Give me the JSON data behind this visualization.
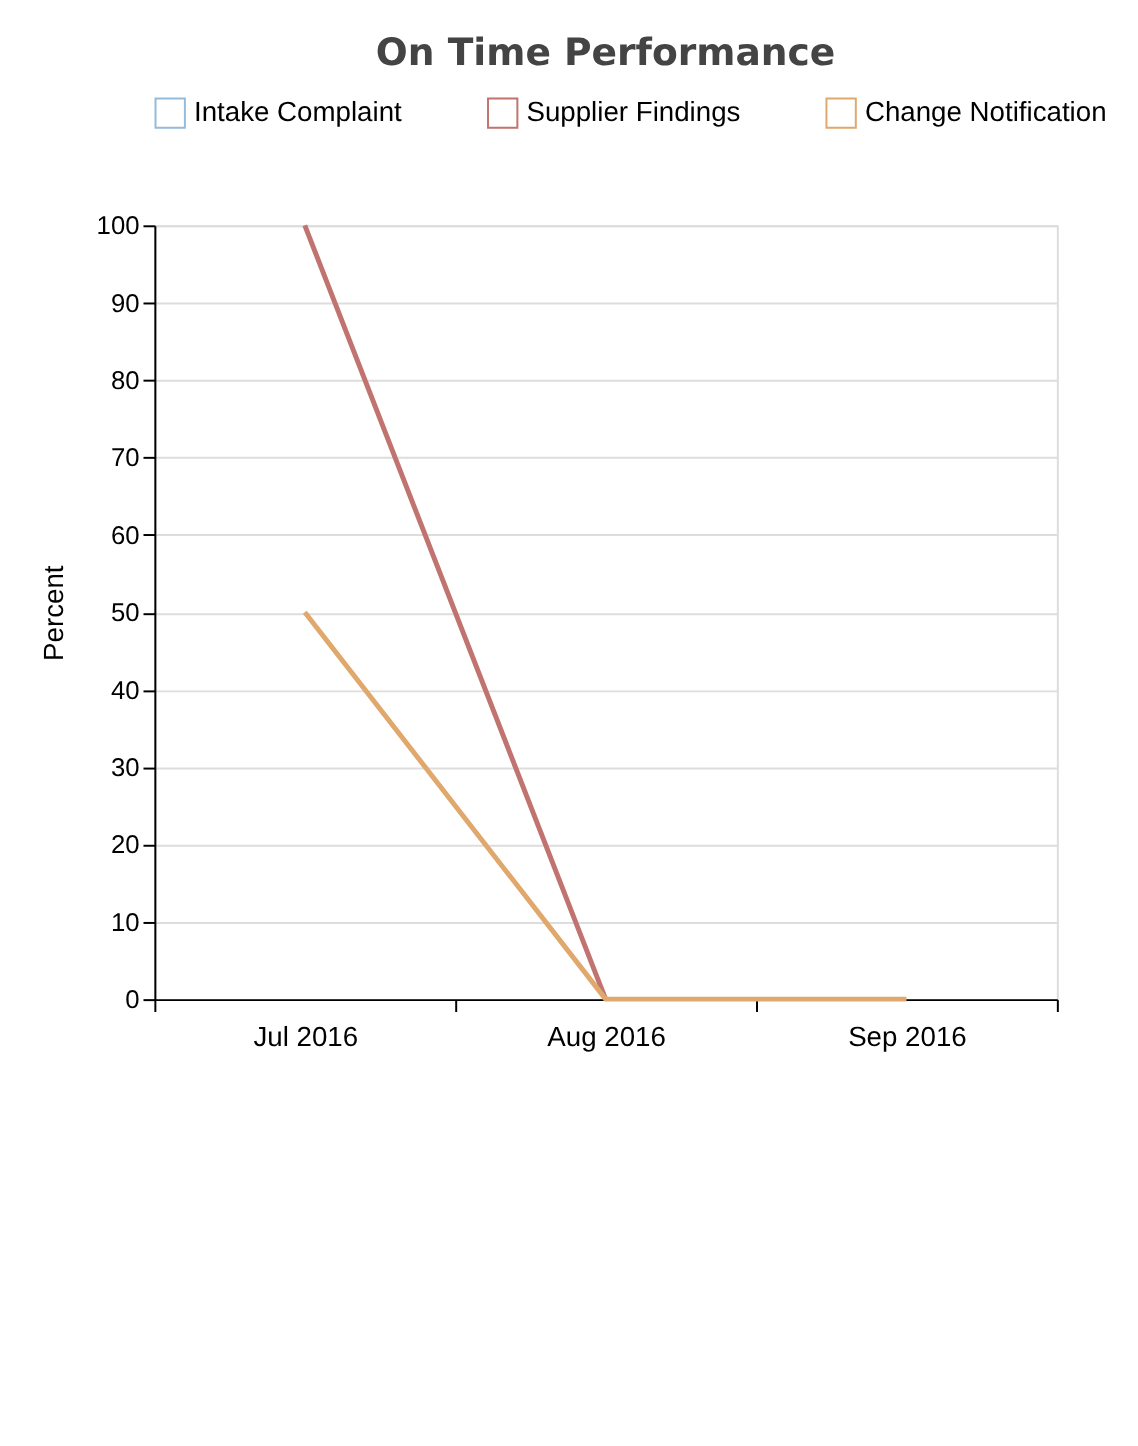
{
  "chart_data": {
    "type": "line",
    "title": "On Time Performance",
    "ylabel": "Percent",
    "categories": [
      "Jul 2016",
      "Aug 2016",
      "Sep 2016"
    ],
    "series": [
      {
        "name": "Intake Complaint",
        "color": "#93bbdc",
        "values": [
          null,
          null,
          null
        ]
      },
      {
        "name": "Supplier Findings",
        "color": "#c0736f",
        "values": [
          100,
          0,
          null
        ]
      },
      {
        "name": "Change Notification",
        "color": "#e0a86c",
        "values": [
          50,
          0,
          0
        ]
      }
    ],
    "ylim": [
      0,
      100
    ],
    "yticks": [
      0,
      10,
      20,
      30,
      40,
      50,
      60,
      70,
      80,
      90,
      100
    ],
    "grid": "y",
    "legend": "top",
    "marker": "none",
    "line_style": "solid"
  }
}
